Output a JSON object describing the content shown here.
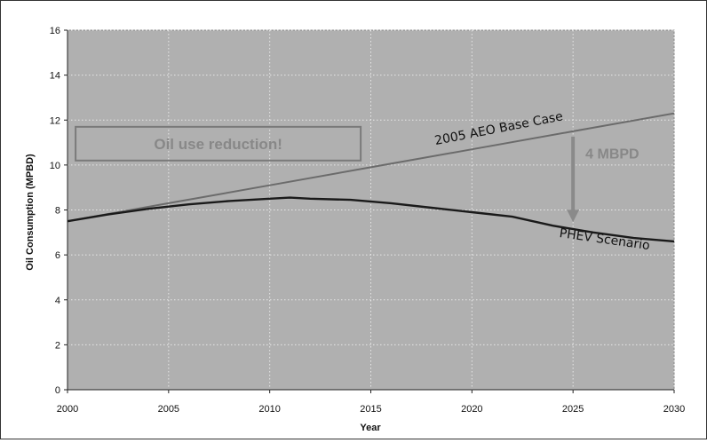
{
  "chart_data": {
    "type": "line",
    "title": "",
    "xlabel": "Year",
    "ylabel": "Oil Consumption (MPBD)",
    "xlim": [
      2000,
      2030
    ],
    "ylim": [
      0,
      16
    ],
    "x_ticks": [
      2000,
      2005,
      2010,
      2015,
      2020,
      2025,
      2030
    ],
    "y_ticks": [
      0,
      2,
      4,
      6,
      8,
      10,
      12,
      14,
      16
    ],
    "grid": true,
    "series": [
      {
        "name": "2005 AEO Base Case",
        "color": "#6b6b6b",
        "x": [
          2000,
          2005,
          2010,
          2015,
          2020,
          2025,
          2030
        ],
        "y": [
          7.5,
          8.3,
          9.1,
          9.9,
          10.7,
          11.5,
          12.3
        ]
      },
      {
        "name": "PHEV Scenario",
        "color": "#1a1a1a",
        "x": [
          2000,
          2002,
          2004,
          2006,
          2008,
          2010,
          2011,
          2012,
          2014,
          2016,
          2018,
          2020,
          2022,
          2024,
          2026,
          2028,
          2030
        ],
        "y": [
          7.5,
          7.8,
          8.05,
          8.25,
          8.4,
          8.5,
          8.55,
          8.5,
          8.45,
          8.3,
          8.1,
          7.9,
          7.7,
          7.3,
          7.0,
          6.75,
          6.6
        ]
      }
    ],
    "annotations": {
      "reduction_box": "Oil use reduction!",
      "difference": "4 MBPD",
      "difference_arrow": {
        "x": 2025,
        "from_y": 11.5,
        "to_y": 7.3
      }
    },
    "colors": {
      "plot_background": "#b0b0b0",
      "grid": "#e8e8e8",
      "arrow": "#8a8a8a"
    }
  }
}
